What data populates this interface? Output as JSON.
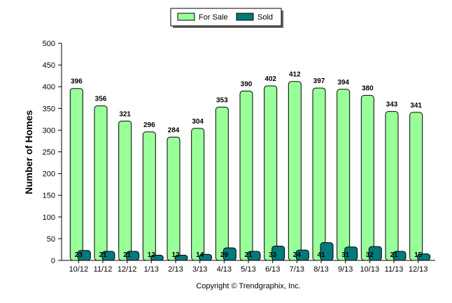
{
  "chart_data": {
    "type": "bar",
    "categories": [
      "10/12",
      "11/12",
      "12/12",
      "1/13",
      "2/13",
      "3/13",
      "4/13",
      "5/13",
      "6/13",
      "7/13",
      "8/13",
      "9/13",
      "10/13",
      "11/13",
      "12/13"
    ],
    "series": [
      {
        "name": "For Sale",
        "values": [
          396,
          356,
          321,
          296,
          284,
          304,
          353,
          390,
          402,
          412,
          397,
          394,
          380,
          343,
          341
        ],
        "color": "#99ff99"
      },
      {
        "name": "Sold",
        "values": [
          23,
          21,
          21,
          12,
          12,
          14,
          29,
          21,
          33,
          24,
          41,
          31,
          32,
          21,
          15
        ],
        "color": "#007a7a"
      }
    ],
    "ylabel": "Number of Homes",
    "xlabel": "",
    "ylim": [
      0,
      500
    ],
    "yticks": [
      0,
      50,
      100,
      150,
      200,
      250,
      300,
      350,
      400,
      450,
      500
    ],
    "legend_position": "top-center",
    "grid": false
  },
  "footer": {
    "text": "Copyright © Trendgraphix, Inc."
  }
}
